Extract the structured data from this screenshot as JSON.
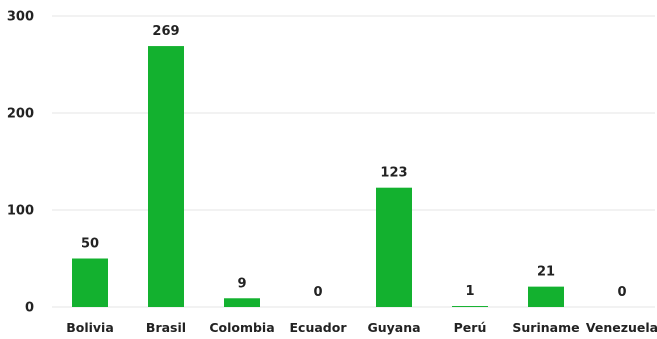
{
  "chart_data": {
    "type": "bar",
    "categories": [
      "Bolivia",
      "Brasil",
      "Colombia",
      "Ecuador",
      "Guyana",
      "Perú",
      "Suriname",
      "Venezuela"
    ],
    "values": [
      50,
      269,
      9,
      0,
      123,
      1,
      21,
      0
    ],
    "data_labels": [
      "50",
      "269",
      "9",
      "0",
      "123",
      "1",
      "21",
      "0"
    ],
    "y_ticks": [
      0,
      100,
      200,
      300
    ],
    "y_tick_labels": [
      "0",
      "100",
      "200",
      "300"
    ],
    "ylim": [
      0,
      300
    ],
    "grid": true,
    "legend": "none",
    "bar_color": "#13b12f",
    "gridline_color": "#e6e6e6",
    "text_color": "#222222"
  }
}
